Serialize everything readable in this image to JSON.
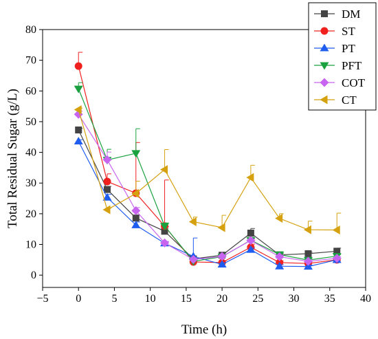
{
  "chart_data": {
    "type": "line",
    "xlabel": "Time (h)",
    "ylabel": "Total Residual Sugar (g/L)",
    "xlim": [
      -5,
      40
    ],
    "ylim": [
      -4,
      80
    ],
    "xticks": [
      -5,
      0,
      5,
      10,
      15,
      20,
      25,
      30,
      35,
      40
    ],
    "yticks": [
      0,
      10,
      20,
      30,
      40,
      50,
      60,
      70,
      80
    ],
    "grid": false,
    "legend_position": "top-right",
    "x": [
      0,
      4,
      8,
      12,
      16,
      20,
      24,
      28,
      32,
      36
    ],
    "series": [
      {
        "name": "DM",
        "color": "#444444",
        "marker": "square",
        "values": [
          47.3,
          27.9,
          18.6,
          14.3,
          5.3,
          6.5,
          13.7,
          6.6,
          7.0,
          7.8
        ],
        "errors": [
          0.5,
          1.0,
          1.0,
          1.5,
          0.5,
          0.8,
          1.5,
          0.5,
          0.5,
          1.0
        ]
      },
      {
        "name": "ST",
        "color": "#f0201f",
        "marker": "circle",
        "values": [
          68.1,
          30.5,
          26.7,
          16.0,
          4.3,
          4.1,
          9.1,
          4.1,
          3.8,
          5.0
        ],
        "errors": [
          4.5,
          2.5,
          16.5,
          15.0,
          0.5,
          0.5,
          1.0,
          0.5,
          0.5,
          0.5
        ]
      },
      {
        "name": "PT",
        "color": "#1f5cf0",
        "marker": "triangle-up",
        "values": [
          43.6,
          25.3,
          16.3,
          10.4,
          6.1,
          3.5,
          8.3,
          2.9,
          2.8,
          5.0
        ],
        "errors": [
          0.5,
          1.0,
          1.0,
          0.5,
          6.0,
          0.5,
          0.5,
          0.5,
          0.5,
          0.5
        ]
      },
      {
        "name": "PFT",
        "color": "#19a13f",
        "marker": "triangle-down",
        "values": [
          60.7,
          37.5,
          39.7,
          16.0,
          4.5,
          6.0,
          11.4,
          6.7,
          4.9,
          6.2
        ],
        "errors": [
          2.0,
          3.5,
          8.0,
          1.0,
          0.5,
          0.5,
          0.5,
          0.5,
          0.5,
          0.5
        ]
      },
      {
        "name": "COT",
        "color": "#c765f0",
        "marker": "diamond",
        "values": [
          52.4,
          37.6,
          21.0,
          10.5,
          5.1,
          6.1,
          11.3,
          6.0,
          4.5,
          5.5
        ],
        "errors": [
          1.0,
          2.5,
          1.0,
          0.5,
          0.5,
          0.5,
          0.5,
          0.5,
          0.5,
          0.5
        ]
      },
      {
        "name": "CT",
        "color": "#d5a10f",
        "marker": "triangle-left",
        "values": [
          53.9,
          21.3,
          26.6,
          34.4,
          17.4,
          15.5,
          31.8,
          18.5,
          14.8,
          14.7
        ],
        "errors": [
          0.5,
          0.5,
          4.0,
          6.5,
          1.5,
          4.0,
          4.0,
          1.5,
          2.8,
          5.5
        ]
      }
    ]
  }
}
